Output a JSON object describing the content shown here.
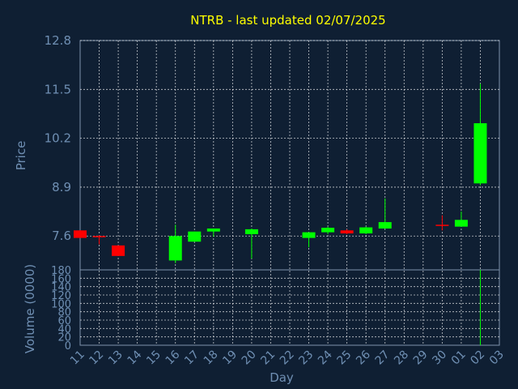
{
  "chart_data": {
    "type": "candlestick",
    "title": "NTRB - last updated 02/07/2025",
    "price_axis": {
      "label": "Price",
      "ticks": [
        "12.8",
        "11.5",
        "10.2",
        "8.9",
        "7.6"
      ],
      "tick_values": [
        12.8,
        11.5,
        10.2,
        8.9,
        7.6
      ],
      "ylim": [
        6.7,
        12.8
      ]
    },
    "volume_axis": {
      "label": "Volume (0000)",
      "ticks": [
        "180",
        "160",
        "140",
        "120",
        "100",
        "80",
        "60",
        "40",
        "20",
        "0"
      ],
      "tick_values": [
        180,
        160,
        140,
        120,
        100,
        80,
        60,
        40,
        20,
        0
      ],
      "ylim": [
        0,
        180
      ]
    },
    "x_axis": {
      "label": "Day",
      "ticks": [
        "11",
        "12",
        "13",
        "14",
        "15",
        "16",
        "17",
        "18",
        "19",
        "20",
        "21",
        "22",
        "23",
        "24",
        "25",
        "26",
        "27",
        "28",
        "29",
        "30",
        "01",
        "02",
        "03"
      ]
    },
    "grid": true,
    "colors": {
      "up": "#00ff00",
      "down": "#ff0000",
      "background": "#0f1f33",
      "title": "#ffff00",
      "axis_text": "#6f8fb3"
    },
    "candles": [
      {
        "day": "11",
        "open": 7.75,
        "high": 7.75,
        "low": 7.55,
        "close": 7.55
      },
      {
        "day": "12",
        "open": 7.6,
        "high": 7.62,
        "low": 7.38,
        "close": 7.58
      },
      {
        "day": "13",
        "open": 7.35,
        "high": 7.35,
        "low": 7.07,
        "close": 7.07
      },
      {
        "day": "16",
        "open": 6.95,
        "high": 7.9,
        "low": 6.88,
        "close": 7.6
      },
      {
        "day": "17",
        "open": 7.45,
        "high": 7.72,
        "low": 7.45,
        "close": 7.72
      },
      {
        "day": "18",
        "open": 7.72,
        "high": 7.8,
        "low": 7.58,
        "close": 7.8
      },
      {
        "day": "20",
        "open": 7.65,
        "high": 7.8,
        "low": 7.0,
        "close": 7.78
      },
      {
        "day": "23",
        "open": 7.55,
        "high": 7.7,
        "low": 7.3,
        "close": 7.7
      },
      {
        "day": "24",
        "open": 7.7,
        "high": 7.85,
        "low": 7.65,
        "close": 7.82
      },
      {
        "day": "25",
        "open": 7.75,
        "high": 7.78,
        "low": 7.65,
        "close": 7.67
      },
      {
        "day": "26",
        "open": 7.67,
        "high": 7.85,
        "low": 7.65,
        "close": 7.83
      },
      {
        "day": "27",
        "open": 7.8,
        "high": 8.6,
        "low": 7.8,
        "close": 7.97
      },
      {
        "day": "30",
        "open": 7.9,
        "high": 8.15,
        "low": 7.75,
        "close": 7.88
      },
      {
        "day": "01",
        "open": 7.85,
        "high": 8.25,
        "low": 7.85,
        "close": 8.03
      },
      {
        "day": "02",
        "open": 9.0,
        "high": 11.65,
        "low": 8.95,
        "close": 10.6
      }
    ],
    "volumes": [
      {
        "day": "02",
        "value": 180
      }
    ]
  }
}
